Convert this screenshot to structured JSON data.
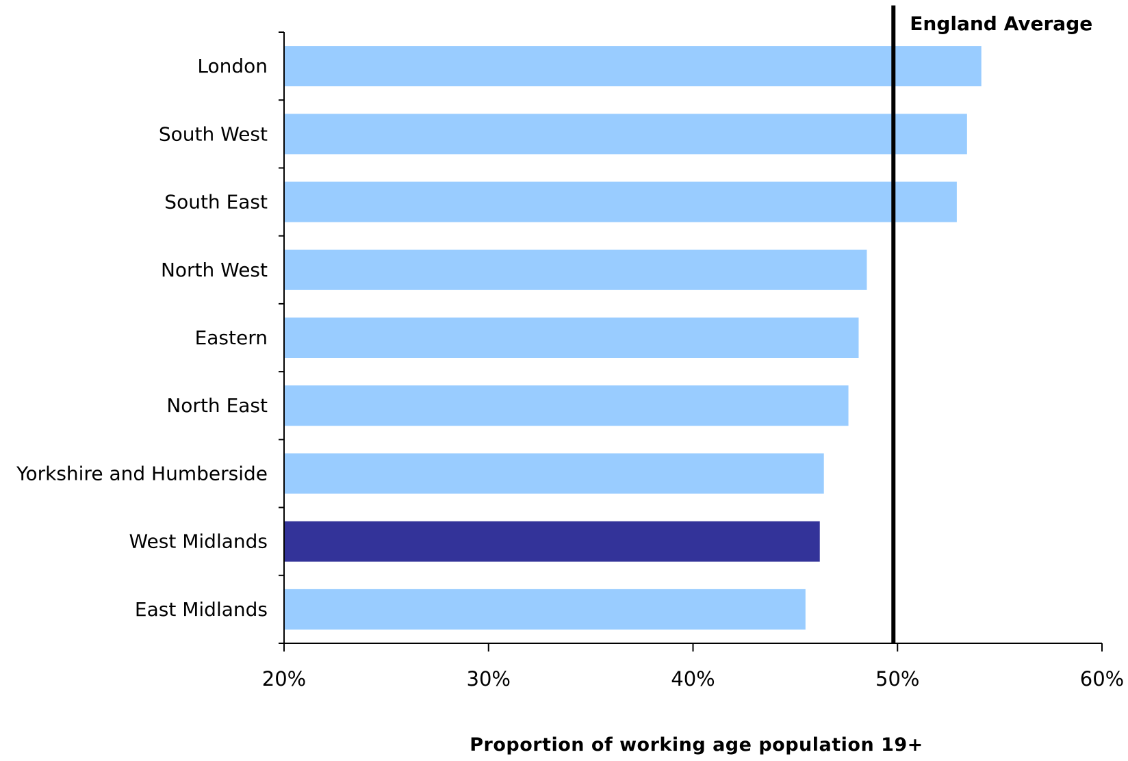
{
  "chart_data": {
    "type": "bar",
    "orientation": "horizontal",
    "categories": [
      "London",
      "South West",
      "South East",
      "North West",
      "Eastern",
      "North East",
      "Yorkshire and Humberside",
      "West Midlands",
      "East Midlands"
    ],
    "values": [
      54.1,
      53.4,
      52.9,
      48.5,
      48.1,
      47.6,
      46.4,
      46.2,
      45.5
    ],
    "highlight_category": "West Midlands",
    "colors": {
      "bar": "#99ccff",
      "highlight": "#333399",
      "reference_line": "#000000",
      "axis": "#000000"
    },
    "xlim": [
      20,
      60
    ],
    "x_ticks": [
      20,
      30,
      40,
      50,
      60
    ],
    "x_tick_labels": [
      "20%",
      "30%",
      "40%",
      "50%",
      "60%"
    ],
    "xlabel": "Proportion of working age population 19+",
    "ylabel": "",
    "title": "",
    "reference_line": {
      "value": 49.8,
      "label": "England Average"
    },
    "grid": false,
    "legend": "none"
  }
}
